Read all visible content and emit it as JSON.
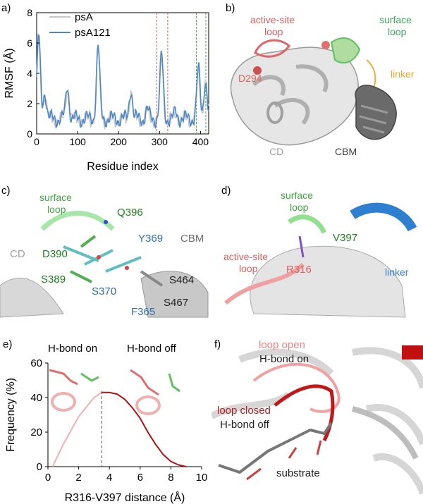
{
  "panels": {
    "a": {
      "label": "a)",
      "chart": {
        "type": "line",
        "xlabel": "Residue index",
        "ylabel": "RMSF (Å)",
        "xlim": [
          0,
          420
        ],
        "ylim": [
          0,
          8
        ],
        "xticks": [
          0,
          100,
          200,
          300,
          400
        ],
        "yticks": [
          0,
          2,
          4,
          6,
          8
        ],
        "legend": [
          "psA",
          "psA121"
        ],
        "colors": {
          "psA": "#c8c8c8",
          "psA121": "#4a86c8",
          "red_lines": "#e06060",
          "green_lines": "#40a860"
        },
        "red_lines": [
          293,
          320
        ],
        "green_lines": [
          390,
          413
        ]
      }
    },
    "b": {
      "label": "b)",
      "active_site_loop": "active-site\nloop",
      "surface_loop": "surface\nloop",
      "linker": "linker",
      "d294": "D294",
      "cd": "CD",
      "cbm": "CBM"
    },
    "c": {
      "label": "c)",
      "surface_loop": "surface\nloop",
      "q396": "Q396",
      "y369": "Y369",
      "cbm": "CBM",
      "cd": "CD",
      "d390": "D390",
      "s389": "S389",
      "s370": "S370",
      "s464": "S464",
      "s467": "S467",
      "f365": "F365"
    },
    "d": {
      "label": "d)",
      "surface_loop": "surface\nloop",
      "v397": "V397",
      "active_site_loop": "active-site\nloop",
      "r316": "R316",
      "linker": "linker"
    },
    "e": {
      "label": "e)",
      "chart": {
        "type": "area",
        "xlabel": "R316-V397 distance (Å)",
        "ylabel": "Frequency (%)",
        "xlim": [
          0,
          10
        ],
        "ylim": [
          0,
          60
        ],
        "xticks": [
          0,
          2,
          4,
          6,
          8,
          10
        ],
        "yticks": [
          0,
          20,
          40,
          60
        ],
        "cutoff": 3.5,
        "x": [
          0.3,
          1.0,
          2.0,
          3.0,
          3.5,
          4.0,
          4.5,
          5.0,
          5.5,
          6.0,
          6.5,
          7.0,
          7.5,
          8.0,
          8.5,
          9.0
        ],
        "values": [
          0,
          13,
          29,
          40,
          43,
          43,
          42,
          39,
          34,
          28,
          20,
          13,
          7,
          3,
          1,
          0
        ]
      },
      "hbond_on": "H-bond on",
      "hbond_off": "H-bond off"
    },
    "f": {
      "label": "f)",
      "loop_open": "loop open",
      "hbond_on": "H-bond on",
      "loop_closed": "loop closed",
      "hbond_off": "H-bond off",
      "substrate": "substrate"
    }
  }
}
